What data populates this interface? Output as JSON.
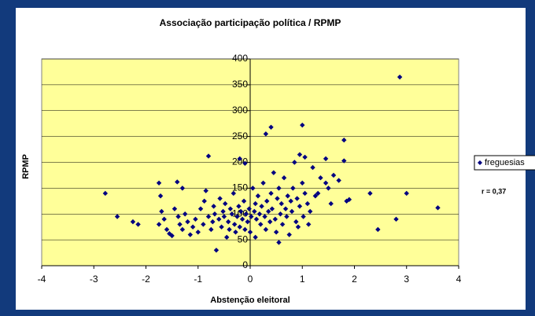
{
  "chart_data": {
    "type": "scatter",
    "title": "Associação participação política / RPMP",
    "x_label": "Abstenção eleitoral",
    "y_label": "RPMP",
    "annotation": "r = 0,37",
    "xlim": [
      -4,
      4
    ],
    "xticks": [
      -4,
      -3,
      -2,
      -1,
      0,
      1,
      2,
      3,
      4
    ],
    "ylim": [
      0,
      400
    ],
    "yticks": [
      0,
      50,
      100,
      150,
      200,
      250,
      300,
      350,
      400
    ],
    "grid": true,
    "legend": "right",
    "x": [
      -2.78,
      -2.55,
      -2.25,
      -2.15,
      -1.75,
      -1.72,
      -1.7,
      -1.75,
      -1.65,
      -1.6,
      -1.55,
      -1.5,
      -1.45,
      -1.4,
      -1.38,
      -1.35,
      -1.3,
      -1.3,
      -1.25,
      -1.2,
      -1.15,
      -1.1,
      -1.05,
      -1.0,
      -0.95,
      -0.9,
      -0.88,
      -0.85,
      -0.8,
      -0.8,
      -0.75,
      -0.72,
      -0.7,
      -0.68,
      -0.65,
      -0.6,
      -0.58,
      -0.55,
      -0.52,
      -0.5,
      -0.48,
      -0.45,
      -0.42,
      -0.4,
      -0.38,
      -0.35,
      -0.32,
      -0.3,
      -0.28,
      -0.25,
      -0.22,
      -0.2,
      -0.2,
      -0.18,
      -0.15,
      -0.12,
      -0.1,
      -0.1,
      -0.08,
      -0.05,
      -0.02,
      0.0,
      0.02,
      0.05,
      0.08,
      0.1,
      0.1,
      0.12,
      0.15,
      0.18,
      0.2,
      0.22,
      0.25,
      0.28,
      0.3,
      0.3,
      0.32,
      0.35,
      0.38,
      0.4,
      0.4,
      0.42,
      0.45,
      0.48,
      0.5,
      0.52,
      0.55,
      0.55,
      0.58,
      0.6,
      0.62,
      0.65,
      0.68,
      0.7,
      0.72,
      0.75,
      0.78,
      0.8,
      0.82,
      0.85,
      0.88,
      0.9,
      0.92,
      0.95,
      0.95,
      1.0,
      1.0,
      1.02,
      1.05,
      1.05,
      1.1,
      1.12,
      1.15,
      1.2,
      1.25,
      1.3,
      1.35,
      1.45,
      1.45,
      1.5,
      1.55,
      1.6,
      1.7,
      1.8,
      1.8,
      1.85,
      1.9,
      2.3,
      2.45,
      2.8,
      2.87,
      3.0,
      3.6
    ],
    "series": [
      {
        "name": "freguesias",
        "color": "#000080",
        "values": [
          140,
          95,
          85,
          80,
          160,
          135,
          105,
          80,
          90,
          70,
          62,
          58,
          110,
          162,
          95,
          80,
          150,
          70,
          100,
          85,
          60,
          75,
          90,
          65,
          110,
          80,
          125,
          145,
          212,
          95,
          70,
          85,
          115,
          100,
          30,
          90,
          130,
          75,
          105,
          95,
          120,
          55,
          85,
          70,
          110,
          100,
          140,
          80,
          65,
          95,
          115,
          207,
          75,
          105,
          90,
          125,
          198,
          70,
          100,
          85,
          110,
          65,
          95,
          150,
          105,
          55,
          120,
          90,
          135,
          100,
          80,
          115,
          160,
          95,
          255,
          70,
          125,
          105,
          85,
          268,
          140,
          110,
          180,
          90,
          65,
          130,
          45,
          150,
          100,
          120,
          80,
          170,
          110,
          95,
          135,
          60,
          125,
          105,
          150,
          200,
          85,
          130,
          75,
          215,
          115,
          272,
          160,
          95,
          210,
          140,
          120,
          80,
          105,
          190,
          135,
          140,
          170,
          207,
          160,
          150,
          120,
          175,
          165,
          243,
          203,
          125,
          128,
          140,
          70,
          90,
          365,
          140,
          112
        ]
      }
    ]
  }
}
